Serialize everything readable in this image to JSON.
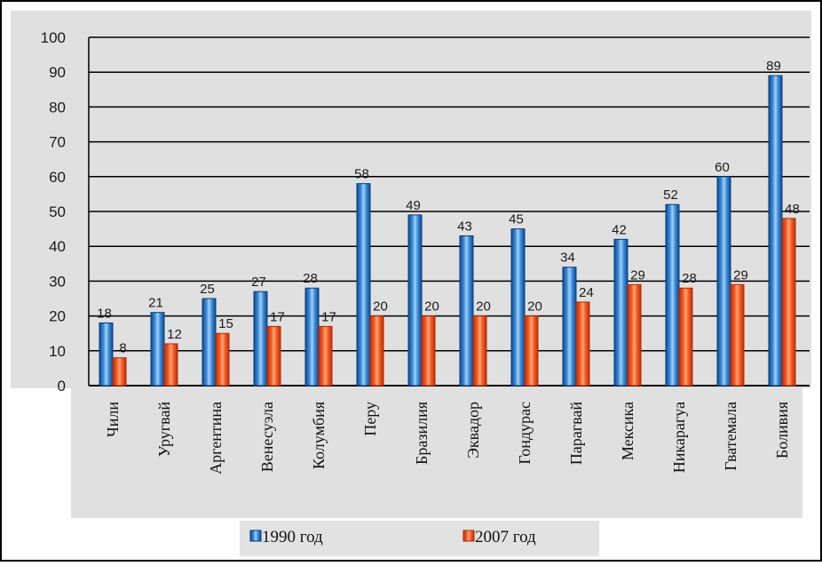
{
  "chart_data": {
    "type": "bar",
    "title": "",
    "xlabel": "",
    "ylabel": "",
    "ylim": [
      0,
      100
    ],
    "yticks": [
      0,
      10,
      20,
      30,
      40,
      50,
      60,
      70,
      80,
      90,
      100
    ],
    "grid": true,
    "legend_position": "bottom",
    "categories": [
      "Чили",
      "Уругвай",
      "Аргентина",
      "Венесуэла",
      "Колумбия",
      "Перу",
      "Бразилия",
      "Эквадор",
      "Гондурас",
      "Парагвай",
      "Мексика",
      "Никарагуа",
      "Гватемала",
      "Боливия"
    ],
    "series": [
      {
        "name": "1990 год",
        "color": "#2f86d0",
        "values": [
          18,
          21,
          25,
          27,
          28,
          58,
          49,
          43,
          45,
          34,
          42,
          52,
          60,
          89
        ]
      },
      {
        "name": "2007 год",
        "color": "#f05020",
        "values": [
          8,
          12,
          15,
          17,
          17,
          20,
          20,
          20,
          20,
          24,
          29,
          28,
          29,
          48
        ]
      }
    ]
  },
  "colors": {
    "plot_background": "#e0e0e0",
    "page_background": "#ffffff",
    "grid": "#000000"
  }
}
